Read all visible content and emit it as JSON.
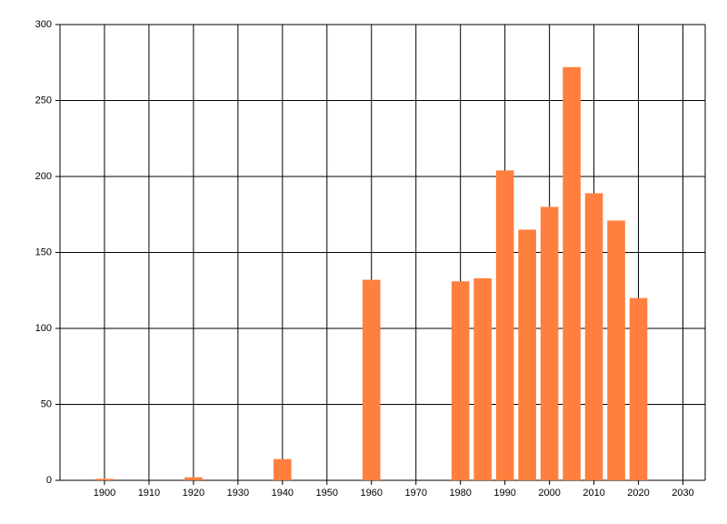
{
  "chart_data": {
    "type": "bar",
    "x": [
      1900,
      1920,
      1940,
      1960,
      1980,
      1985,
      1990,
      1995,
      2000,
      2005,
      2010,
      2015,
      2020
    ],
    "values": [
      1,
      2,
      14,
      132,
      131,
      133,
      204,
      165,
      180,
      272,
      189,
      171,
      120
    ],
    "color": "#ff7f3f",
    "xlim": [
      1890,
      2035
    ],
    "xticks": [
      1900,
      1910,
      1920,
      1930,
      1940,
      1950,
      1960,
      1970,
      1980,
      1990,
      2000,
      2010,
      2020,
      2030
    ],
    "ylim": [
      0,
      300
    ],
    "yticks": [
      0,
      50,
      100,
      150,
      200,
      250,
      300
    ],
    "grid": true
  }
}
